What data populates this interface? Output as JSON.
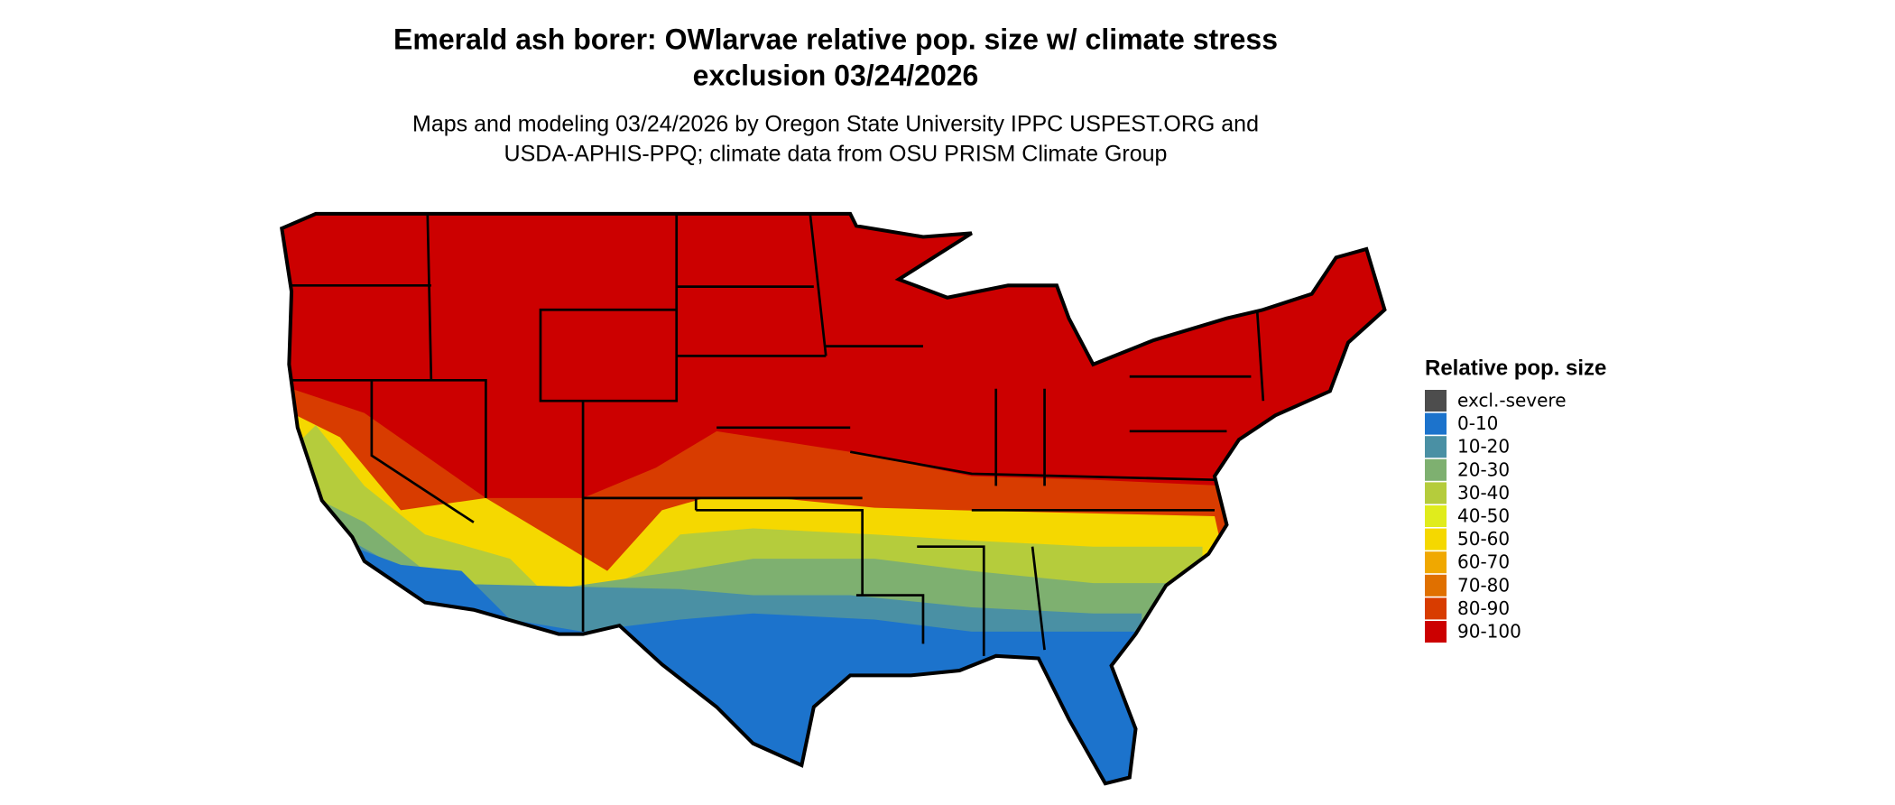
{
  "title": [
    "Emerald ash borer: OWlarvae relative pop. size w/ climate stress",
    "exclusion 03/24/2026"
  ],
  "subtitle": [
    "Maps and modeling 03/24/2026 by Oregon State University IPPC USPEST.ORG and",
    "USDA-APHIS-PPQ; climate data from OSU PRISM Climate Group"
  ],
  "legend": {
    "title": "Relative pop. size",
    "items": [
      {
        "label": "excl.-severe",
        "color": "#4d4d4d"
      },
      {
        "label": "0-10",
        "color": "#1c73cc"
      },
      {
        "label": "10-20",
        "color": "#4a90a4"
      },
      {
        "label": "20-30",
        "color": "#7eb070"
      },
      {
        "label": "30-40",
        "color": "#b5cc3c"
      },
      {
        "label": "40-50",
        "color": "#e0ec1c"
      },
      {
        "label": "50-60",
        "color": "#f5d800"
      },
      {
        "label": "60-70",
        "color": "#f0a800"
      },
      {
        "label": "70-80",
        "color": "#e07000"
      },
      {
        "label": "80-90",
        "color": "#d83c00"
      },
      {
        "label": "90-100",
        "color": "#cc0000"
      }
    ]
  }
}
